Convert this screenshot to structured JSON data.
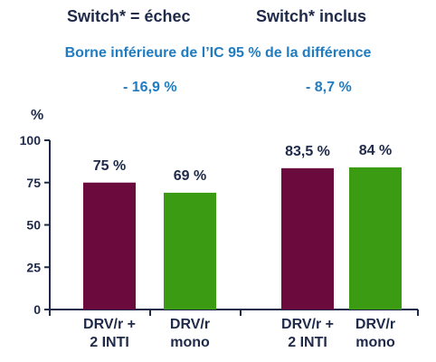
{
  "headers": {
    "left": "Switch* = échec",
    "right": "Switch* inclus"
  },
  "subtitle": "Borne inférieure de l’IC 95 % de la différence",
  "ci_values": {
    "left": "- 16,9 %",
    "right": "- 8,7 %"
  },
  "colors": {
    "drv_r_2inti": "#6b0a3c",
    "drv_r_mono": "#3b9c14",
    "header_text": "#1f2a4a",
    "accent_blue": "#1f7cc1"
  },
  "chart_data": {
    "type": "bar",
    "ylabel": "%",
    "ylim": [
      0,
      100
    ],
    "yticks": [
      0,
      25,
      50,
      75,
      100
    ],
    "groups": [
      "Switch* = échec",
      "Switch* inclus"
    ],
    "categories": [
      "DRV/r + 2 INTI",
      "DRV/r mono",
      "DRV/r + 2 INTI",
      "DRV/r mono"
    ],
    "category_lines": [
      [
        "DRV/r +",
        "2 INTI"
      ],
      [
        "DRV/r",
        "mono"
      ],
      [
        "DRV/r +",
        "2 INTI"
      ],
      [
        "DRV/r",
        "mono"
      ]
    ],
    "values": [
      75,
      69,
      83.5,
      84
    ],
    "data_labels": [
      "75 %",
      "69 %",
      "83,5 %",
      "84 %"
    ],
    "grid": false
  }
}
